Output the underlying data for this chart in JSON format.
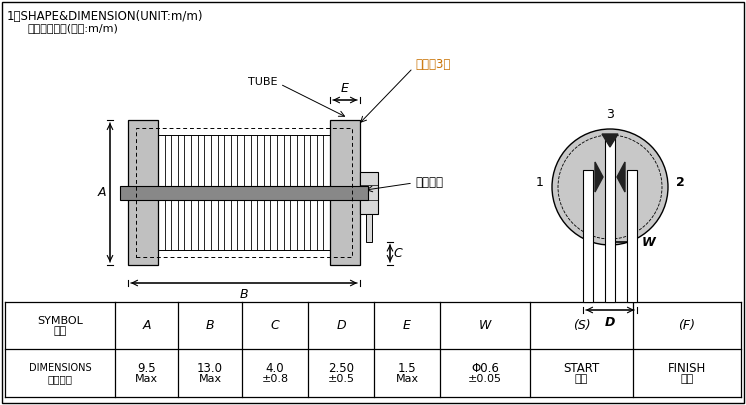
{
  "title_line1": "1、SHAPE&DIMENSION(UNIT:m/m)",
  "title_line2": "外观图形尺寸(单位:m/m)",
  "bg_color": "#ffffff",
  "label_tube": "TUBE",
  "label_white_edge": "白边对3脚",
  "label_dot_glue": "点胶固定",
  "label_A": "A",
  "label_B": "B",
  "label_C": "C",
  "label_E": "E",
  "label_W": "W",
  "label_D": "D",
  "pin1": "1",
  "pin2": "2",
  "pin3": "3",
  "sym_row1": [
    "SYMBOL",
    "标注"
  ],
  "sym_cols": [
    "A",
    "B",
    "C",
    "D",
    "E",
    "W",
    "(S)",
    "(F)"
  ],
  "dim_row1": [
    "DIMENSIONS",
    "尺寸参数"
  ],
  "dim_vals1": [
    "9.5",
    "13.0",
    "4.0",
    "2.50",
    "1.5",
    "Φ0.6",
    "START",
    "FINISH"
  ],
  "dim_vals2": [
    "Max",
    "Max",
    "±0.8",
    "±0.5",
    "Max",
    "±0.05",
    "起线",
    "收线"
  ]
}
